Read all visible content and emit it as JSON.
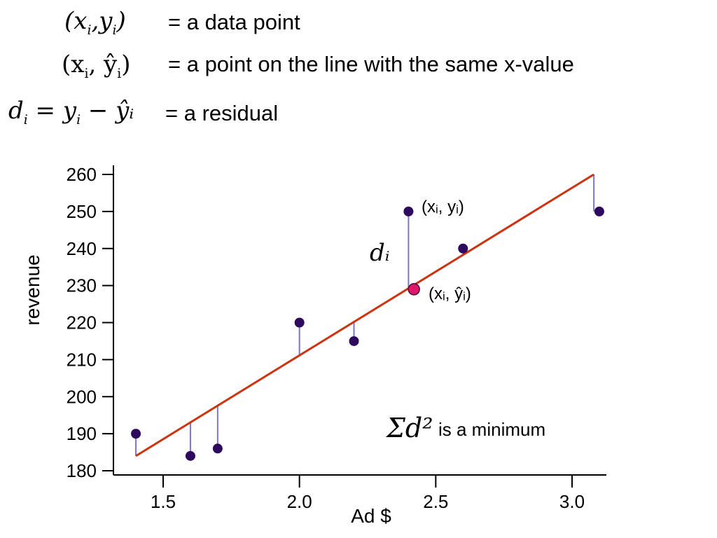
{
  "legend": [
    {
      "symbol_base": "(x",
      "symbol_sub": "i",
      "symbol_mid": ",y",
      "symbol_sub2": "i",
      "symbol_end": ")",
      "text": "= a data point"
    },
    {
      "symbol_base": "(x",
      "symbol_sub": "i",
      "symbol_mid": ", ŷ",
      "symbol_sub2": "i",
      "symbol_end": ")",
      "text": "= a point on the line with the same x-value"
    },
    {
      "symbol_base": "d",
      "symbol_sub": "i",
      "symbol_mid": " = y",
      "symbol_sub2": "i",
      "symbol_end": " − ŷᵢ",
      "text": "= a residual"
    }
  ],
  "chart_data": {
    "type": "scatter",
    "xlabel": "Ad $",
    "ylabel": "revenue",
    "xlim": [
      1.3,
      3.2
    ],
    "ylim": [
      180,
      262
    ],
    "xticks": [
      1.5,
      2.0,
      2.5,
      3.0
    ],
    "xtick_labels": [
      "1.5",
      "2.0",
      "2.5",
      "3.0"
    ],
    "yticks": [
      180,
      190,
      200,
      210,
      220,
      230,
      240,
      250,
      260
    ],
    "ytick_labels": [
      "180",
      "190",
      "200",
      "210",
      "220",
      "230",
      "240",
      "250",
      "260"
    ],
    "points": [
      {
        "x": 1.4,
        "y": 190
      },
      {
        "x": 1.6,
        "y": 184
      },
      {
        "x": 1.7,
        "y": 186
      },
      {
        "x": 2.0,
        "y": 220
      },
      {
        "x": 2.2,
        "y": 215
      },
      {
        "x": 2.4,
        "y": 250
      },
      {
        "x": 2.6,
        "y": 240
      },
      {
        "x": 3.1,
        "y": 250
      }
    ],
    "fit_line": {
      "x0": 1.4,
      "y0": 184,
      "x1": 3.08,
      "y1": 260
    },
    "highlight_point": {
      "x": 2.42,
      "y": 229
    },
    "annotations": {
      "data_point_label": "(xᵢ, yᵢ)",
      "line_point_label": "(xᵢ, ŷᵢ)",
      "residual_label": "dᵢ",
      "sum_symbol": "Σd²",
      "sum_text": "is a minimum"
    },
    "colors": {
      "points": "#2e0a5e",
      "line": "#cc3311",
      "residual": "#7b75c9",
      "highlight": "#e0186c"
    },
    "grid": false
  }
}
